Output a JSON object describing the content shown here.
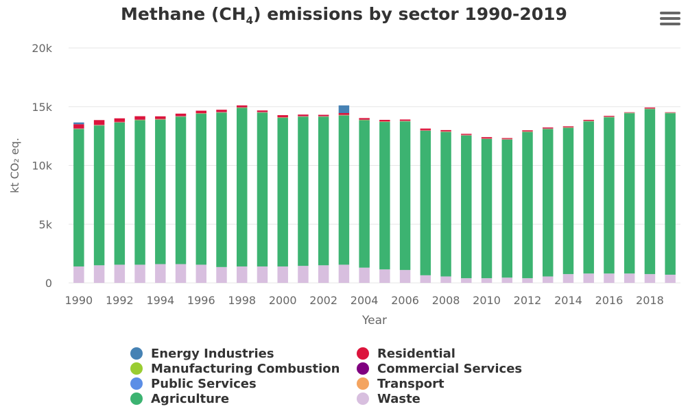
{
  "chart_data": {
    "type": "bar",
    "stacked": true,
    "title": "Methane (CH4) emissions by sector 1990-2019",
    "title_parts": {
      "before": "Methane (CH",
      "subscript": "4",
      "after": ") emissions by sector 1990-2019"
    },
    "xlabel": "Year",
    "ylabel": "kt CO₂ eq.",
    "ylim": [
      0,
      20000
    ],
    "yticks": [
      0,
      5000,
      10000,
      15000,
      20000
    ],
    "ytick_labels": [
      "0",
      "5k",
      "10k",
      "15k",
      "20k"
    ],
    "categories": [
      "1990",
      "1991",
      "1992",
      "1993",
      "1994",
      "1995",
      "1996",
      "1997",
      "1998",
      "1999",
      "2000",
      "2001",
      "2002",
      "2003",
      "2004",
      "2005",
      "2006",
      "2007",
      "2008",
      "2009",
      "2010",
      "2011",
      "2012",
      "2013",
      "2014",
      "2015",
      "2016",
      "2017",
      "2018",
      "2019"
    ],
    "xtick_labels": [
      "1990",
      "1992",
      "1994",
      "1996",
      "1998",
      "2000",
      "2002",
      "2004",
      "2006",
      "2008",
      "2010",
      "2012",
      "2014",
      "2016",
      "2018"
    ],
    "grid": true,
    "legend_position": "bottom",
    "series": [
      {
        "name": "Waste",
        "color": "#d8bfdf",
        "values": [
          1400,
          1500,
          1550,
          1550,
          1600,
          1600,
          1550,
          1350,
          1400,
          1400,
          1400,
          1450,
          1500,
          1550,
          1300,
          1150,
          1100,
          650,
          550,
          400,
          400,
          450,
          400,
          550,
          750,
          800,
          800,
          800,
          750,
          700
        ]
      },
      {
        "name": "Agriculture",
        "color": "#3cb371",
        "values": [
          11700,
          11900,
          12100,
          12300,
          12300,
          12550,
          12850,
          13150,
          13500,
          13100,
          12650,
          12700,
          12650,
          12700,
          12550,
          12550,
          12650,
          12300,
          12300,
          12150,
          11850,
          11750,
          12450,
          12550,
          12450,
          12950,
          13300,
          13650,
          14050,
          13750
        ]
      },
      {
        "name": "Transport",
        "color": "#f4a460",
        "values": [
          30,
          30,
          30,
          30,
          30,
          30,
          30,
          30,
          30,
          30,
          30,
          30,
          30,
          30,
          30,
          30,
          30,
          30,
          30,
          30,
          30,
          30,
          30,
          30,
          30,
          30,
          30,
          30,
          30,
          30
        ]
      },
      {
        "name": "Public Services",
        "color": "#5b8ee6",
        "values": [
          0,
          0,
          0,
          0,
          0,
          0,
          0,
          0,
          0,
          0,
          0,
          0,
          0,
          0,
          0,
          0,
          0,
          0,
          0,
          0,
          0,
          0,
          0,
          0,
          0,
          0,
          0,
          0,
          0,
          0
        ]
      },
      {
        "name": "Commercial Services",
        "color": "#800080",
        "values": [
          20,
          20,
          20,
          20,
          20,
          20,
          20,
          20,
          20,
          20,
          20,
          20,
          20,
          20,
          20,
          20,
          20,
          20,
          20,
          20,
          20,
          20,
          20,
          20,
          20,
          20,
          20,
          20,
          20,
          20
        ]
      },
      {
        "name": "Manufacturing Combustion",
        "color": "#9acd32",
        "values": [
          10,
          10,
          10,
          10,
          10,
          10,
          10,
          10,
          10,
          10,
          10,
          10,
          10,
          10,
          10,
          10,
          10,
          10,
          10,
          10,
          10,
          10,
          10,
          10,
          10,
          10,
          10,
          10,
          10,
          10
        ]
      },
      {
        "name": "Residential",
        "color": "#dc143c",
        "values": [
          350,
          400,
          300,
          280,
          220,
          200,
          200,
          180,
          150,
          120,
          170,
          120,
          100,
          150,
          120,
          120,
          100,
          130,
          100,
          80,
          100,
          70,
          80,
          70,
          70,
          70,
          60,
          20,
          70,
          20
        ]
      },
      {
        "name": "Energy Industries",
        "color": "#4682b4",
        "values": [
          150,
          0,
          0,
          0,
          0,
          0,
          0,
          0,
          0,
          0,
          0,
          0,
          0,
          650,
          0,
          0,
          0,
          0,
          0,
          0,
          0,
          0,
          0,
          0,
          0,
          0,
          0,
          0,
          0,
          0
        ]
      }
    ],
    "legend": [
      {
        "name": "Energy Industries",
        "color": "#4682b4"
      },
      {
        "name": "Residential",
        "color": "#dc143c"
      },
      {
        "name": "Manufacturing Combustion",
        "color": "#9acd32"
      },
      {
        "name": "Commercial Services",
        "color": "#800080"
      },
      {
        "name": "Public Services",
        "color": "#5b8ee6"
      },
      {
        "name": "Transport",
        "color": "#f4a460"
      },
      {
        "name": "Agriculture",
        "color": "#3cb371"
      },
      {
        "name": "Waste",
        "color": "#d8bfdf"
      }
    ]
  },
  "colors": {
    "grid": "#e6e6e6",
    "axis_text": "#666666",
    "title_text": "#333333"
  },
  "menu": {
    "icon": "hamburger-menu-icon"
  }
}
